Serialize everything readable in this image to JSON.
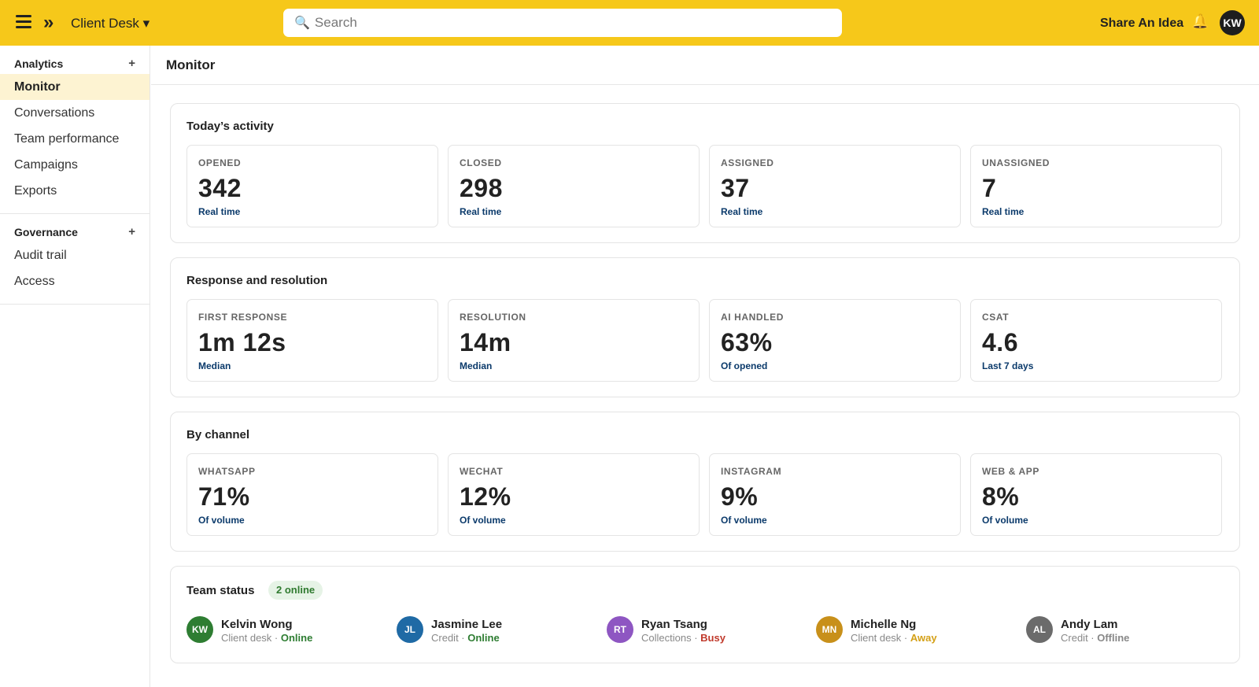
{
  "topbar": {
    "app_name": "Client Desk ▾",
    "search_placeholder": "Search",
    "share_label": "Share An Idea",
    "avatar_initials": "KW"
  },
  "sidebar": {
    "analytics_header": "Analytics",
    "analytics_items": [
      "Monitor",
      "Conversations",
      "Team performance",
      "Campaigns",
      "Exports"
    ],
    "governance_header": "Governance",
    "governance_items": [
      "Audit trail",
      "Access"
    ],
    "active_item": "Monitor"
  },
  "main": {
    "title": "Monitor",
    "activity": {
      "title": "Today’s activity",
      "cards": [
        {
          "label": "OPENED",
          "value": "342",
          "sub": "Real time"
        },
        {
          "label": "CLOSED",
          "value": "298",
          "sub": "Real time"
        },
        {
          "label": "ASSIGNED",
          "value": "37",
          "sub": "Real time"
        },
        {
          "label": "UNASSIGNED",
          "value": "7",
          "sub": "Real time"
        }
      ]
    },
    "response": {
      "title": "Response and resolution",
      "cards": [
        {
          "label": "FIRST RESPONSE",
          "value": "1m 12s",
          "sub": "Median"
        },
        {
          "label": "RESOLUTION",
          "value": "14m",
          "sub": "Median"
        },
        {
          "label": "AI HANDLED",
          "value": "63%",
          "sub": "Of opened"
        },
        {
          "label": "CSAT",
          "value": "4.6",
          "sub": "Last 7 days"
        }
      ]
    },
    "channel": {
      "title": "By channel",
      "cards": [
        {
          "label": "WHATSAPP",
          "value": "71%",
          "sub": "Of volume"
        },
        {
          "label": "WECHAT",
          "value": "12%",
          "sub": "Of volume"
        },
        {
          "label": "INSTAGRAM",
          "value": "9%",
          "sub": "Of volume"
        },
        {
          "label": "WEB & APP",
          "value": "8%",
          "sub": "Of volume"
        }
      ]
    },
    "team": {
      "title": "Team status",
      "badge": "2 online",
      "members": [
        {
          "initials": "KW",
          "name": "Kelvin Wong",
          "team": "Client desk · ",
          "status": "Online",
          "avatar_color": "#2e7d32",
          "status_color": "#2e7d32"
        },
        {
          "initials": "JL",
          "name": "Jasmine Lee",
          "team": "Credit · ",
          "status": "Online",
          "avatar_color": "#1f6aa5",
          "status_color": "#2e7d32"
        },
        {
          "initials": "RT",
          "name": "Ryan Tsang",
          "team": "Collections · ",
          "status": "Busy",
          "avatar_color": "#8e56c2",
          "status_color": "#c0392b"
        },
        {
          "initials": "MN",
          "name": "Michelle Ng",
          "team": "Client desk · ",
          "status": "Away",
          "avatar_color": "#c8901a",
          "status_color": "#d4a017"
        },
        {
          "initials": "AL",
          "name": "Andy Lam",
          "team": "Credit · ",
          "status": "Offline",
          "avatar_color": "#6b6b6b",
          "status_color": "#888888"
        }
      ]
    }
  },
  "colors": {
    "topbar": "#f6c81a",
    "active_nav": "#fdf3d2",
    "card_sub": "#0b3a6b",
    "badge_bg": "#e6f3e6",
    "badge_text": "#2f7a2f"
  },
  "icons": {
    "menu": "hamburger-icon",
    "expand": "double-chevron-right-icon",
    "search": "magnifier-icon",
    "notifications": "bell-icon",
    "add": "plus-icon"
  }
}
